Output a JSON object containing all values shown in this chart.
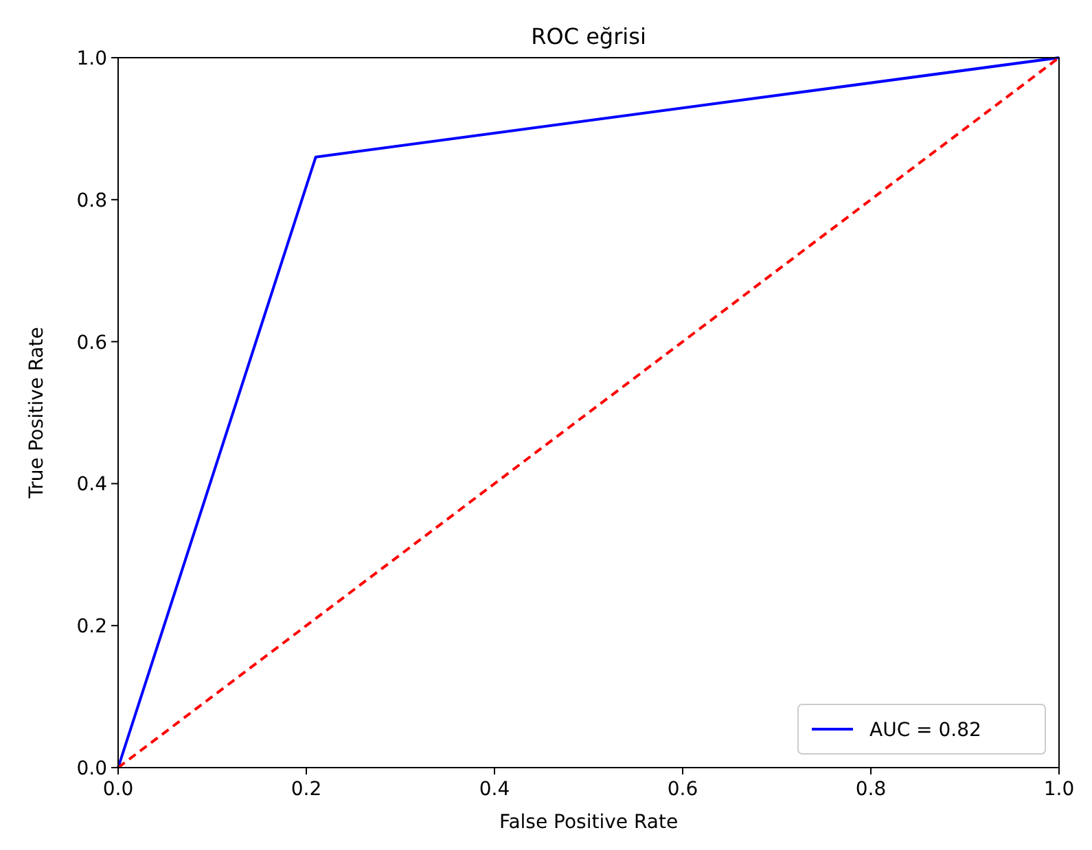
{
  "chart_data": {
    "type": "line",
    "title": "ROC eğrisi",
    "xlabel": "False Positive Rate",
    "ylabel": "True Positive Rate",
    "series": [
      {
        "name": "AUC = 0.82",
        "color": "#0000ff",
        "x": [
          0,
          0.21,
          1
        ],
        "values": [
          0,
          0.86,
          1
        ],
        "line_style": "solid"
      },
      {
        "color": "#ff0000",
        "x": [
          0,
          1
        ],
        "values": [
          0,
          1
        ],
        "line_style": "dashed"
      }
    ],
    "xlim": [
      0,
      1
    ],
    "ylim": [
      0,
      1
    ],
    "xticks": [
      {
        "value": 0,
        "label": "0.0"
      },
      0.2,
      0.4,
      0.6,
      0.8,
      {
        "value": 1,
        "label": "1.0"
      }
    ],
    "yticks": [
      {
        "value": 0,
        "label": "0.0"
      },
      0.2,
      0.4,
      0.6,
      0.8,
      {
        "value": 1,
        "label": "1.0"
      }
    ],
    "legend": "bottom right",
    "grid": false
  }
}
